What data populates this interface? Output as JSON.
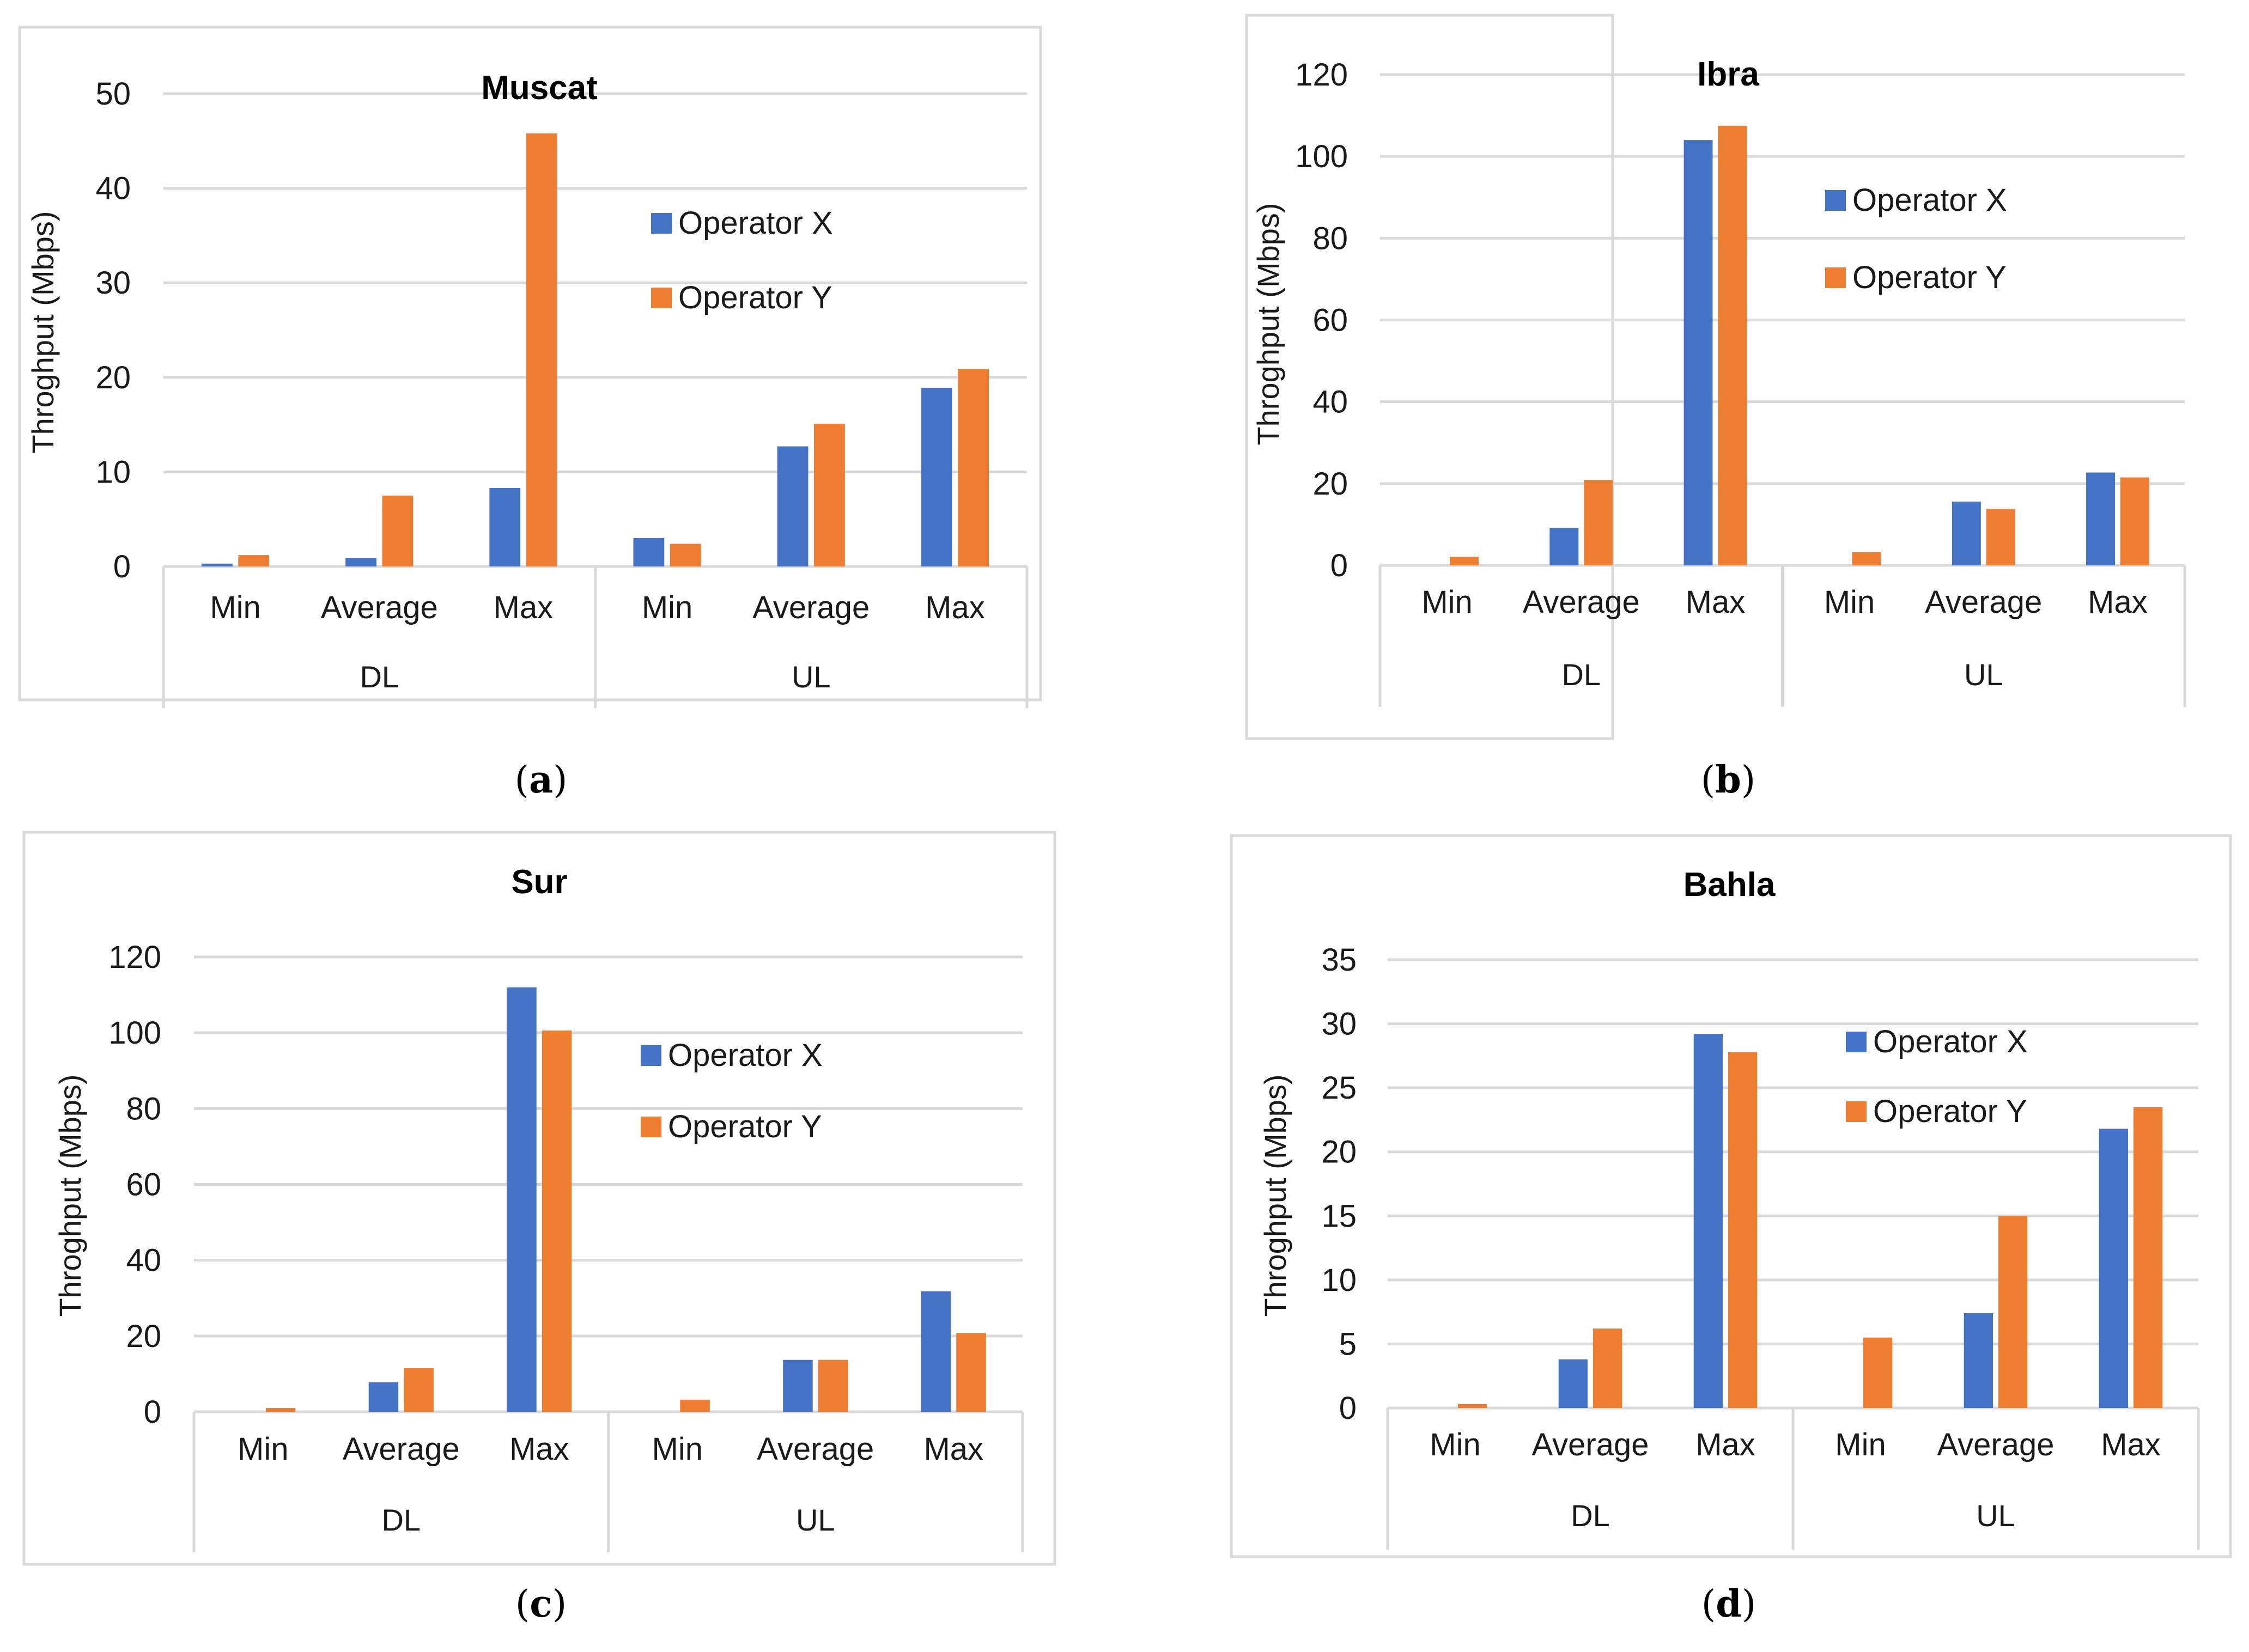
{
  "colors": {
    "series_0": "#4472c4",
    "series_1": "#ed7d31",
    "grid": "#d9d9d9",
    "frame": "#d9d9d9"
  },
  "chart_data": [
    {
      "type": "bar",
      "caption": "(a)",
      "title": "Muscat",
      "ylabel": "Throghput (Mbps)",
      "groups": [
        "DL",
        "UL"
      ],
      "categories": [
        "Min",
        "Average",
        "Max",
        "Min",
        "Average",
        "Max"
      ],
      "ylim": [
        0,
        50
      ],
      "yticks": [
        0,
        10,
        20,
        30,
        40,
        50
      ],
      "series": [
        {
          "name": "Operator X",
          "values": [
            0.3,
            0.9,
            8.3,
            3.0,
            12.7,
            18.9
          ]
        },
        {
          "name": "Operator Y",
          "values": [
            1.2,
            7.5,
            45.8,
            2.4,
            15.1,
            20.9
          ]
        }
      ],
      "grid": true,
      "legend": "top-right"
    },
    {
      "type": "bar",
      "caption": "(b)",
      "title": "Ibra",
      "ylabel": "Throghput (Mbps)",
      "groups": [
        "DL",
        "UL"
      ],
      "categories": [
        "Min",
        "Average",
        "Max",
        "Min",
        "Average",
        "Max"
      ],
      "ylim": [
        0,
        120
      ],
      "yticks": [
        0,
        20,
        40,
        60,
        80,
        100,
        120
      ],
      "series": [
        {
          "name": "Operator X",
          "values": [
            0,
            9.2,
            104,
            0,
            15.6,
            22.7
          ]
        },
        {
          "name": "Operator Y",
          "values": [
            2.1,
            20.9,
            107.5,
            3.2,
            13.8,
            21.5
          ]
        }
      ],
      "grid": true,
      "legend": "top-right"
    },
    {
      "type": "bar",
      "caption": "(c)",
      "title": "Sur",
      "ylabel": "Throghput (Mbps)",
      "groups": [
        "DL",
        "UL"
      ],
      "categories": [
        "Min",
        "Average",
        "Max",
        "Min",
        "Average",
        "Max"
      ],
      "ylim": [
        0,
        120
      ],
      "yticks": [
        0,
        20,
        40,
        60,
        80,
        100,
        120
      ],
      "series": [
        {
          "name": "Operator X",
          "values": [
            0,
            7.8,
            112,
            0,
            13.7,
            31.8
          ]
        },
        {
          "name": "Operator Y",
          "values": [
            1.0,
            11.5,
            100.6,
            3.2,
            13.7,
            20.8
          ]
        }
      ],
      "grid": true,
      "legend": "top-right"
    },
    {
      "type": "bar",
      "caption": "(d)",
      "title": "Bahla",
      "ylabel": "Throghput (Mbps)",
      "groups": [
        "DL",
        "UL"
      ],
      "categories": [
        "Min",
        "Average",
        "Max",
        "Min",
        "Average",
        "Max"
      ],
      "ylim": [
        0,
        35
      ],
      "yticks": [
        0,
        5,
        10,
        15,
        20,
        25,
        30,
        35
      ],
      "series": [
        {
          "name": "Operator X",
          "values": [
            0,
            3.8,
            29.2,
            0,
            7.4,
            21.8
          ]
        },
        {
          "name": "Operator Y",
          "values": [
            0.3,
            6.2,
            27.8,
            5.5,
            15.0,
            23.5
          ]
        }
      ],
      "grid": true,
      "legend": "top-right"
    }
  ]
}
